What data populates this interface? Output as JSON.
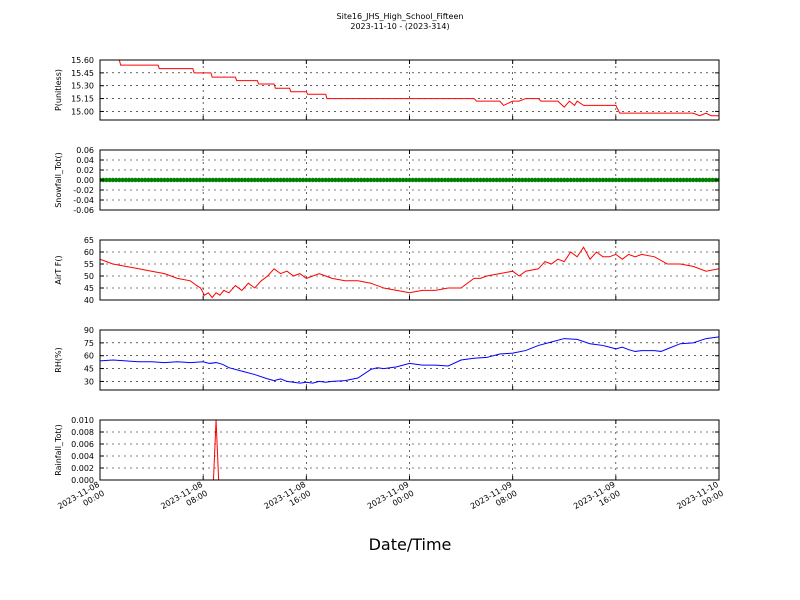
{
  "figure": {
    "title_line1": "Site16_JHS_High_School_Fifteen",
    "title_line2": "2023-11-10 - (2023-314)",
    "xlabel": "Date/Time"
  },
  "chart_data": [
    {
      "type": "line",
      "ylabel": "P(unitless)",
      "color": "#ff0000",
      "ylim": [
        14.9,
        15.6
      ],
      "yticks": [
        "15.60",
        "15.45",
        "15.30",
        "15.15",
        "15.00"
      ],
      "ytick_values": [
        15.6,
        15.45,
        15.3,
        15.15,
        15.0
      ],
      "xlim_hours": [
        0,
        48
      ],
      "grid": true,
      "series": [
        {
          "x": [
            0,
            1.5,
            1.6,
            4.5,
            4.6,
            7.2,
            7.3,
            8.6,
            8.7,
            10.5,
            10.6,
            12.2,
            12.3,
            13.5,
            13.6,
            14.7,
            14.8,
            16.0,
            16.1,
            17.5,
            17.6,
            18.0,
            29.0,
            29.2,
            31.0,
            31.3,
            32.0,
            32.5,
            33.0,
            34.0,
            34.2,
            35.5,
            36.0,
            36.4,
            36.8,
            37.0,
            37.5,
            40.0,
            40.3,
            46.0,
            46.5,
            47.0,
            47.4,
            48.0
          ],
          "y": [
            15.6,
            15.6,
            15.54,
            15.54,
            15.5,
            15.5,
            15.45,
            15.45,
            15.4,
            15.4,
            15.36,
            15.36,
            15.32,
            15.32,
            15.27,
            15.27,
            15.23,
            15.23,
            15.2,
            15.2,
            15.15,
            15.15,
            15.15,
            15.12,
            15.12,
            15.07,
            15.12,
            15.12,
            15.15,
            15.15,
            15.12,
            15.12,
            15.05,
            15.12,
            15.07,
            15.12,
            15.07,
            15.07,
            14.98,
            14.98,
            14.95,
            14.98,
            14.95,
            14.95
          ]
        }
      ]
    },
    {
      "type": "scatter",
      "ylabel": "Snowfall_Tot()",
      "color": "#008000",
      "ylim": [
        -0.06,
        0.06
      ],
      "yticks": [
        "0.06",
        "0.04",
        "0.02",
        "0.00",
        "-0.02",
        "-0.04",
        "-0.06"
      ],
      "ytick_values": [
        0.06,
        0.04,
        0.02,
        0.0,
        -0.02,
        -0.04,
        -0.06
      ],
      "xlim_hours": [
        0,
        48
      ],
      "grid": true,
      "series": [
        {
          "x_start": 0,
          "x_end": 48,
          "x_step": 0.25,
          "value": 0.0
        }
      ]
    },
    {
      "type": "line",
      "ylabel": "AirT F()",
      "color": "#ff0000",
      "ylim": [
        40,
        65
      ],
      "yticks": [
        "65",
        "60",
        "55",
        "50",
        "45",
        "40"
      ],
      "ytick_values": [
        65,
        60,
        55,
        50,
        45,
        40
      ],
      "xlim_hours": [
        0,
        48
      ],
      "grid": true,
      "series": [
        {
          "x": [
            0,
            0.5,
            1,
            2,
            3,
            4,
            5,
            6,
            7,
            7.5,
            7.8,
            8.1,
            8.4,
            8.7,
            9.0,
            9.3,
            9.6,
            10.0,
            10.5,
            11.0,
            11.5,
            12.0,
            12.5,
            13.0,
            13.5,
            14.0,
            14.5,
            15.0,
            15.5,
            16.0,
            16.5,
            17.0,
            17.5,
            18,
            19,
            20,
            21,
            22,
            23,
            24,
            25,
            26,
            27,
            28,
            29,
            29.5,
            30,
            31,
            32,
            32.5,
            33,
            34,
            34.5,
            35,
            35.5,
            36,
            36.5,
            37,
            37.5,
            38,
            38.5,
            39,
            39.5,
            40,
            40.5,
            41,
            41.5,
            42,
            43,
            44,
            45,
            46,
            47,
            48
          ],
          "y": [
            57,
            56,
            55,
            54,
            53,
            52,
            51,
            49,
            48,
            46,
            45,
            42,
            43,
            41,
            43,
            42,
            44,
            43,
            46,
            44,
            47,
            45,
            48,
            50,
            53,
            51,
            52,
            50,
            51,
            49,
            50,
            51,
            50,
            49,
            48,
            48,
            47,
            45,
            44,
            43,
            44,
            44,
            45,
            45,
            49,
            49,
            50,
            51,
            52,
            50,
            52,
            53,
            56,
            55,
            57,
            56,
            60,
            58,
            62,
            57,
            60,
            58,
            58,
            59,
            57,
            59,
            58,
            59,
            58,
            55,
            55,
            54,
            52,
            53
          ]
        }
      ]
    },
    {
      "type": "line",
      "ylabel": "RH(%)",
      "color": "#0000ff",
      "ylim": [
        20,
        90
      ],
      "yticks": [
        "90",
        "75",
        "60",
        "45",
        "30"
      ],
      "ytick_values": [
        90,
        75,
        60,
        45,
        30
      ],
      "xlim_hours": [
        0,
        48
      ],
      "grid": true,
      "series": [
        {
          "x": [
            0,
            1,
            2,
            3,
            4,
            5,
            6,
            7,
            8,
            8.5,
            9,
            9.5,
            10,
            11,
            12,
            13,
            13.5,
            14,
            14.5,
            15,
            15.5,
            16,
            16.5,
            17,
            17.5,
            18,
            19,
            20,
            21,
            21.5,
            22,
            23,
            24,
            25,
            26,
            27,
            28,
            29,
            30,
            31,
            32,
            33,
            34,
            35,
            36,
            37,
            38,
            38.5,
            39,
            39.5,
            40,
            40.5,
            41,
            41.5,
            42,
            43,
            43.5,
            44,
            45,
            46,
            47,
            48
          ],
          "y": [
            54,
            55,
            54,
            53,
            53,
            52,
            53,
            52,
            53,
            51,
            52,
            50,
            46,
            42,
            38,
            33,
            31,
            33,
            30,
            29,
            28,
            29,
            28,
            30,
            29,
            30,
            31,
            34,
            44,
            46,
            45,
            47,
            51,
            49,
            49,
            48,
            55,
            57,
            58,
            62,
            63,
            66,
            72,
            76,
            80,
            79,
            74,
            73,
            72,
            70,
            68,
            70,
            67,
            65,
            66,
            66,
            65,
            68,
            74,
            75,
            80,
            82
          ]
        }
      ]
    },
    {
      "type": "line",
      "ylabel": "Rainfall_Tot()",
      "color": "#ff0000",
      "ylim": [
        0,
        0.01
      ],
      "yticks": [
        "0.010",
        "0.008",
        "0.006",
        "0.004",
        "0.002",
        "0.000"
      ],
      "ytick_values": [
        0.01,
        0.008,
        0.006,
        0.004,
        0.002,
        0.0
      ],
      "xlim_hours": [
        0,
        48
      ],
      "grid": true,
      "series": [
        {
          "x": [
            0,
            8.8,
            9.0,
            9.2,
            48
          ],
          "y": [
            0,
            0,
            0.01,
            0,
            0
          ]
        }
      ]
    }
  ],
  "x_ticks": [
    {
      "hours": 0,
      "line1": "2023-11-08",
      "line2": "00:00"
    },
    {
      "hours": 8,
      "line1": "2023-11-08",
      "line2": "08:00"
    },
    {
      "hours": 16,
      "line1": "2023-11-08",
      "line2": "16:00"
    },
    {
      "hours": 24,
      "line1": "2023-11-09",
      "line2": "00:00"
    },
    {
      "hours": 32,
      "line1": "2023-11-09",
      "line2": "08:00"
    },
    {
      "hours": 40,
      "line1": "2023-11-09",
      "line2": "16:00"
    },
    {
      "hours": 48,
      "line1": "2023-11-10",
      "line2": "00:00"
    }
  ]
}
